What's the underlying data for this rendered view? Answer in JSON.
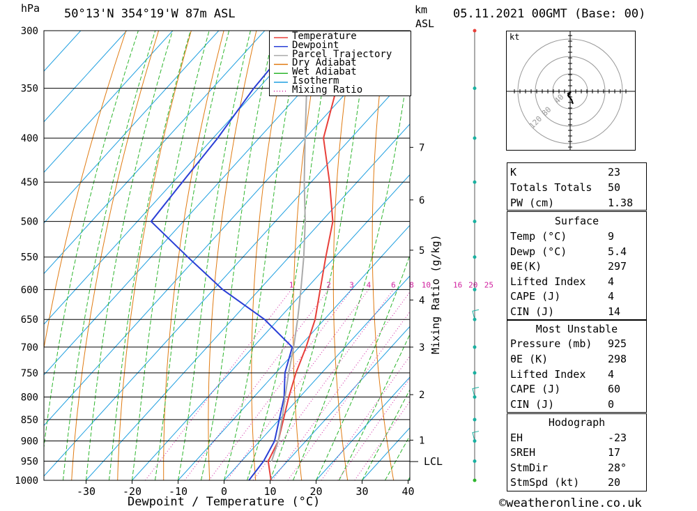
{
  "header": {
    "pressure_unit": "hPa",
    "location": "50°13'N  354°19'W  87m  ASL",
    "km_label": "km",
    "asl_label": "ASL",
    "datetime": "05.11.2021  00GMT  (Base: 00)"
  },
  "xaxis_label": "Dewpoint / Temperature (°C)",
  "mixing_axis_label": "Mixing Ratio (g/kg)",
  "lcl_label": "LCL",
  "copyright": "©weatheronline.co.uk",
  "legend": [
    {
      "label": "Temperature",
      "color": "#e8403a",
      "style": "solid"
    },
    {
      "label": "Dewpoint",
      "color": "#2a3fd6",
      "style": "solid"
    },
    {
      "label": "Parcel Trajectory",
      "color": "#aaaaaa",
      "style": "solid"
    },
    {
      "label": "Dry Adiabat",
      "color": "#e07b12",
      "style": "solid"
    },
    {
      "label": "Wet Adiabat",
      "color": "#2db52d",
      "style": "solid"
    },
    {
      "label": "Isotherm",
      "color": "#1e9fe0",
      "style": "solid"
    },
    {
      "label": "Mixing Ratio",
      "color": "#d01e9e",
      "style": "dotted"
    }
  ],
  "chart_data": {
    "type": "line",
    "title": "",
    "xlabel": "Dewpoint / Temperature (°C)",
    "ylabel": "hPa",
    "pressure_levels": [
      300,
      350,
      400,
      450,
      500,
      550,
      600,
      650,
      700,
      750,
      800,
      850,
      900,
      950,
      1000
    ],
    "temperature_ticks": [
      -30,
      -20,
      -10,
      0,
      10,
      20,
      30,
      40
    ],
    "km_ticks": [
      {
        "km": "1",
        "p": 898
      },
      {
        "km": "2",
        "p": 795
      },
      {
        "km": "3",
        "p": 700
      },
      {
        "km": "4",
        "p": 617
      },
      {
        "km": "5",
        "p": 540
      },
      {
        "km": "6",
        "p": 472
      },
      {
        "km": "7",
        "p": 410
      }
    ],
    "lcl_pressure": 951,
    "mixing_ratio_labels": [
      "1",
      "2",
      "3",
      "4",
      "6",
      "8",
      "10",
      "16",
      "20",
      "25"
    ],
    "series": [
      {
        "name": "Temperature",
        "color": "#e8403a",
        "points": [
          [
            1000,
            10.2
          ],
          [
            950,
            5.8
          ],
          [
            900,
            4.0
          ],
          [
            850,
            0.9
          ],
          [
            800,
            -2.4
          ],
          [
            750,
            -5.6
          ],
          [
            700,
            -8.5
          ],
          [
            650,
            -12.0
          ],
          [
            600,
            -16.8
          ],
          [
            550,
            -22.0
          ],
          [
            500,
            -27.5
          ],
          [
            450,
            -36.0
          ],
          [
            400,
            -46.0
          ],
          [
            350,
            -53.0
          ],
          [
            300,
            -59.0
          ]
        ]
      },
      {
        "name": "Dewpoint",
        "color": "#2a3fd6",
        "points": [
          [
            1000,
            5.4
          ],
          [
            950,
            4.8
          ],
          [
            900,
            3.2
          ],
          [
            850,
            0.0
          ],
          [
            800,
            -3.4
          ],
          [
            750,
            -8.0
          ],
          [
            700,
            -11.5
          ],
          [
            650,
            -23.0
          ],
          [
            600,
            -38.0
          ],
          [
            550,
            -52.0
          ],
          [
            500,
            -67.0
          ],
          [
            450,
            -68.0
          ],
          [
            400,
            -69.0
          ],
          [
            350,
            -71.0
          ],
          [
            300,
            -72.0
          ]
        ]
      },
      {
        "name": "Parcel Trajectory",
        "color": "#aaaaaa",
        "points": [
          [
            951,
            6.6
          ],
          [
            900,
            4.0
          ],
          [
            850,
            0.6
          ],
          [
            800,
            -3.2
          ],
          [
            750,
            -7.2
          ],
          [
            700,
            -11.2
          ],
          [
            650,
            -15.8
          ],
          [
            600,
            -21.0
          ],
          [
            550,
            -26.8
          ],
          [
            500,
            -33.5
          ],
          [
            450,
            -41.5
          ],
          [
            400,
            -50.0
          ],
          [
            350,
            -59.5
          ],
          [
            300,
            -69.0
          ]
        ]
      }
    ]
  },
  "hodograph": {
    "unit": "kt",
    "ring_labels": [
      "40",
      "80",
      "120"
    ]
  },
  "indices": {
    "k": {
      "label": "K",
      "value": "23"
    },
    "tt": {
      "label": "Totals Totals",
      "value": "50"
    },
    "pw": {
      "label": "PW (cm)",
      "value": "1.38"
    }
  },
  "surface": {
    "title": "Surface",
    "temp": {
      "label": "Temp (°C)",
      "value": "9"
    },
    "dewp": {
      "label": "Dewp (°C)",
      "value": "5.4"
    },
    "theta_e": {
      "label": "θE(K)",
      "value": "297"
    },
    "li": {
      "label": "Lifted Index",
      "value": "4"
    },
    "cape": {
      "label": "CAPE (J)",
      "value": "4"
    },
    "cin": {
      "label": "CIN (J)",
      "value": "14"
    }
  },
  "most_unstable": {
    "title": "Most Unstable",
    "pressure": {
      "label": "Pressure (mb)",
      "value": "925"
    },
    "theta_e": {
      "label": "θE (K)",
      "value": "298"
    },
    "li": {
      "label": "Lifted Index",
      "value": "4"
    },
    "cape": {
      "label": "CAPE (J)",
      "value": "60"
    },
    "cin": {
      "label": "CIN (J)",
      "value": "0"
    }
  },
  "hodograph_table": {
    "title": "Hodograph",
    "eh": {
      "label": "EH",
      "value": "-23"
    },
    "sreh": {
      "label": "SREH",
      "value": "17"
    },
    "stmdir": {
      "label": "StmDir",
      "value": "28°"
    },
    "stmspd": {
      "label": "StmSpd (kt)",
      "value": "20"
    }
  }
}
